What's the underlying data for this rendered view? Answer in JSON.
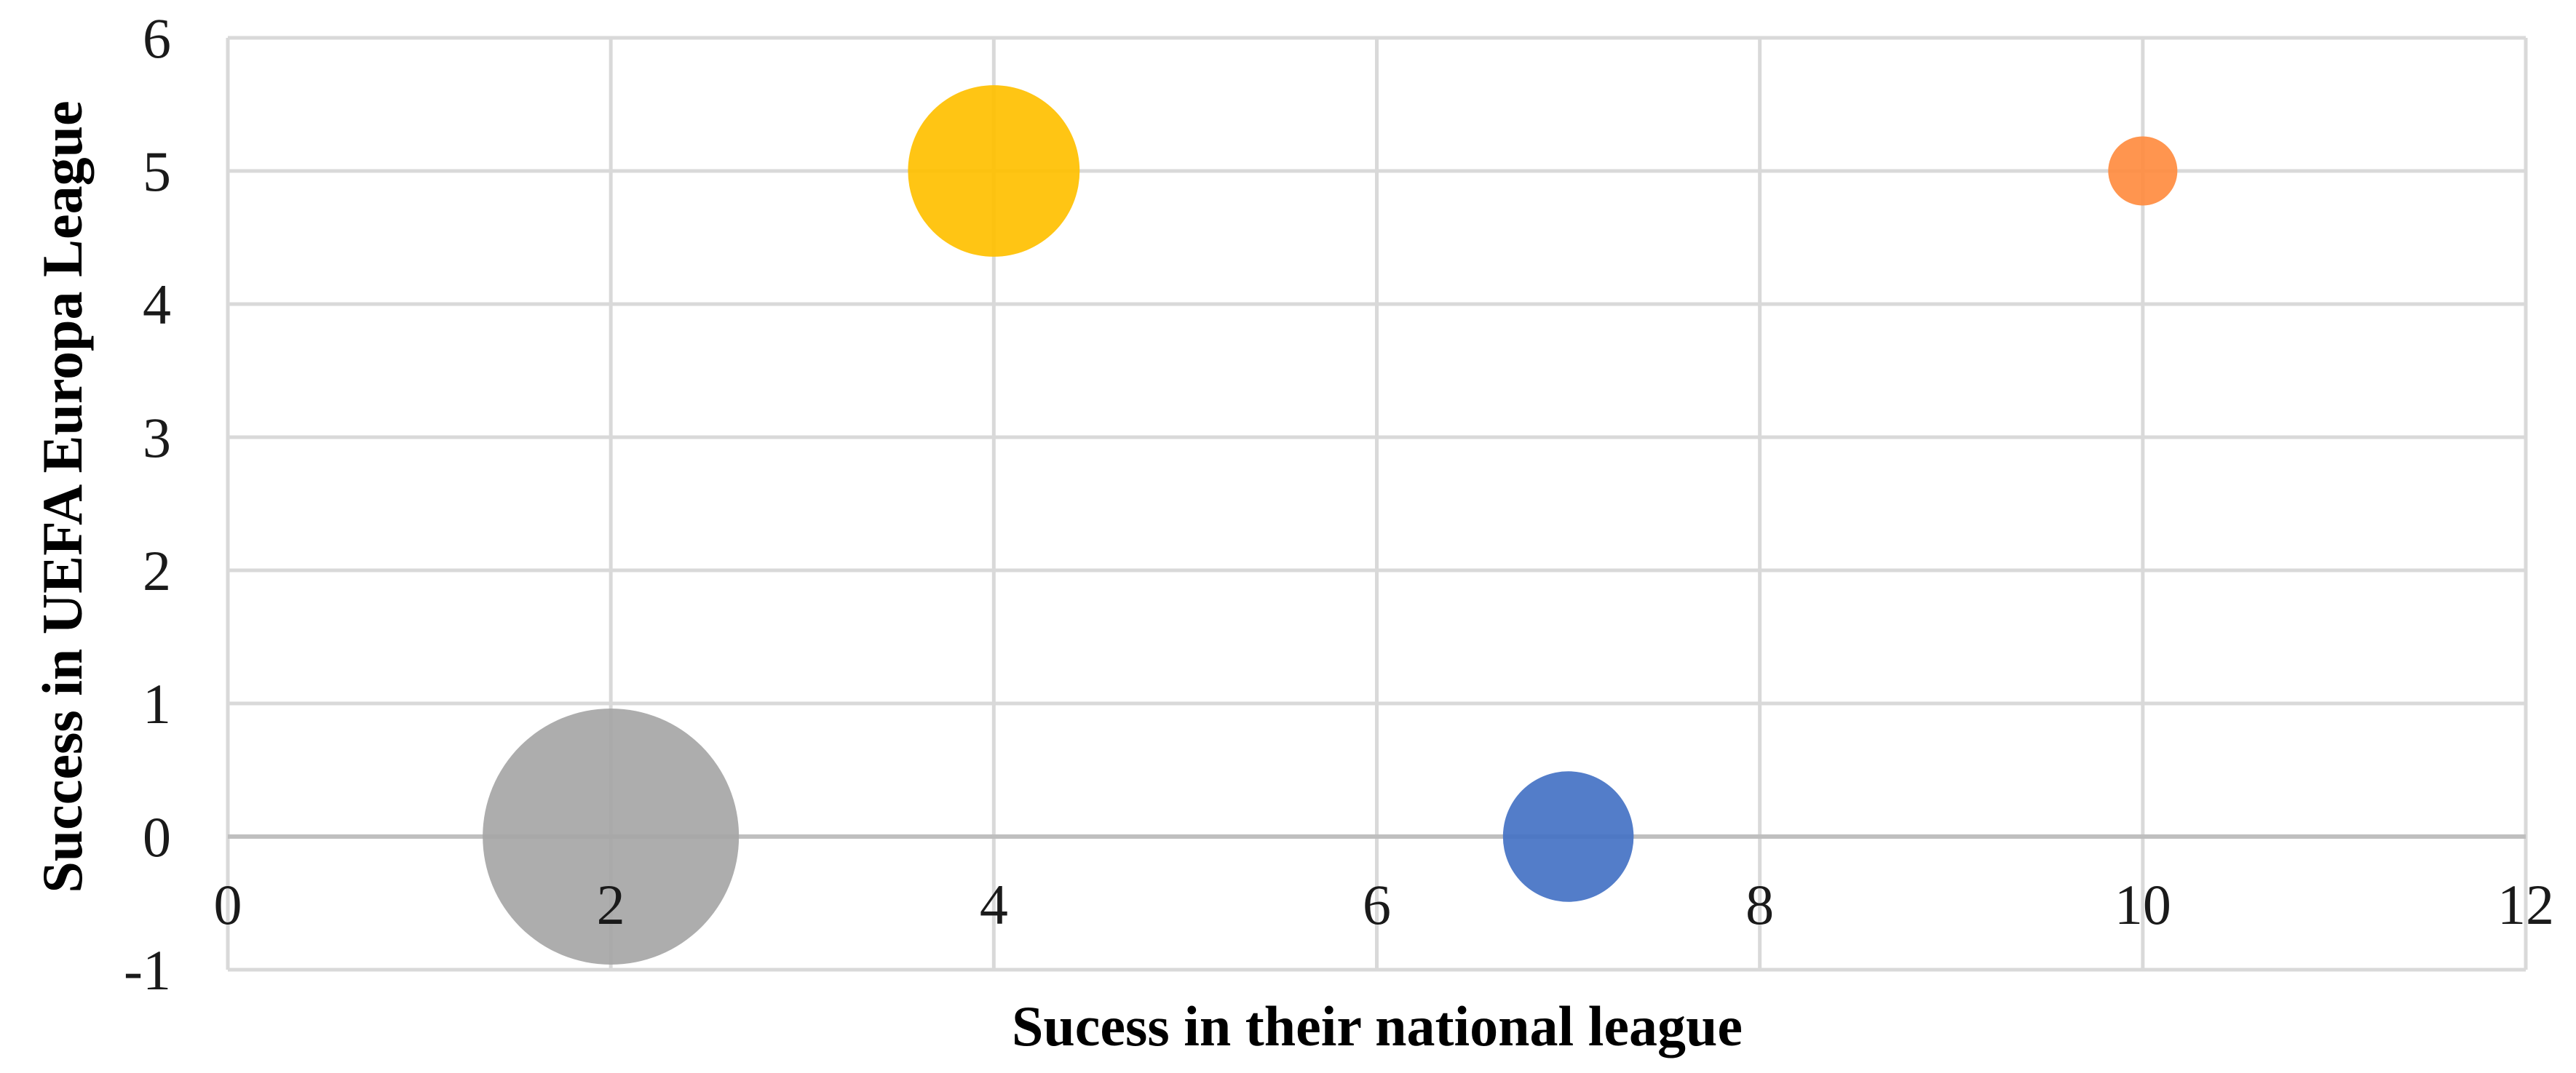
{
  "chart_data": {
    "type": "scatter",
    "title": "",
    "xlabel": "Sucess in their national league",
    "ylabel": "Success in UEFA Europa League",
    "xlim": [
      0,
      12
    ],
    "ylim": [
      -1,
      6
    ],
    "x_ticks": [
      0,
      2,
      4,
      6,
      8,
      10,
      12
    ],
    "y_ticks": [
      -1,
      0,
      1,
      2,
      3,
      4,
      5,
      6
    ],
    "x_tick_labels": [
      "0",
      "2",
      "4",
      "6",
      "8",
      "10",
      "12"
    ],
    "y_tick_labels": [
      "-1",
      "0",
      "1",
      "2",
      "3",
      "4",
      "5",
      "6"
    ],
    "grid": true,
    "legend": "none",
    "bubble_size_unit": "relative radius (largest = 1)",
    "points": [
      {
        "x": 4,
        "y": 5,
        "size": 0.67,
        "color": "#ffc000"
      },
      {
        "x": 10,
        "y": 5,
        "size": 0.27,
        "color": "#ff8c40"
      },
      {
        "x": 2,
        "y": 0,
        "size": 1.0,
        "color": "#a6a6a6"
      },
      {
        "x": 7,
        "y": 0,
        "size": 0.51,
        "color": "#4472c4"
      }
    ],
    "colors": {
      "grid": "#d9d9d9",
      "zero_line": "#bfbfbf"
    }
  }
}
